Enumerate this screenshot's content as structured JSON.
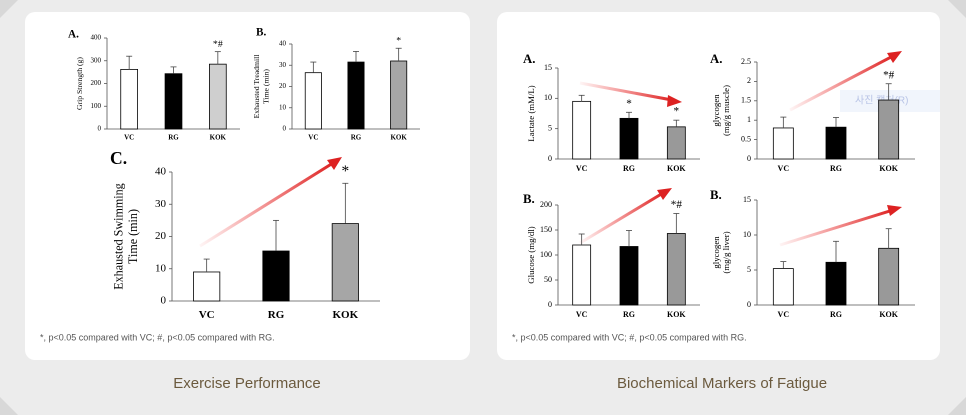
{
  "chart_data": [
    {
      "type": "bar",
      "label": "A.",
      "ylabel": [
        "Grip Strength (g)"
      ],
      "categories": [
        "VC",
        "RG",
        "KOK"
      ],
      "values": [
        262,
        243,
        285
      ],
      "errors": [
        58,
        30,
        55
      ],
      "colors": [
        "#ffffff",
        "#000000",
        "#cfcfcf"
      ],
      "annotations": [
        null,
        null,
        "*#"
      ],
      "ylim": [
        0,
        400
      ],
      "yticks": [
        0,
        100,
        200,
        300,
        400
      ]
    },
    {
      "type": "bar",
      "label": "B.",
      "ylabel": [
        "Exhausted Treadmill",
        "Time (min)"
      ],
      "categories": [
        "VC",
        "RG",
        "KOK"
      ],
      "values": [
        26.5,
        31.5,
        32
      ],
      "errors": [
        5,
        5,
        6
      ],
      "colors": [
        "#ffffff",
        "#000000",
        "#a6a6a6"
      ],
      "annotations": [
        null,
        null,
        "*"
      ],
      "ylim": [
        0,
        40
      ],
      "yticks": [
        0,
        10,
        20,
        30,
        40
      ]
    },
    {
      "type": "bar",
      "label": "C.",
      "ylabel": [
        "Exhausted Swimming",
        "Time (min)"
      ],
      "categories": [
        "VC",
        "RG",
        "KOK"
      ],
      "values": [
        9,
        15.5,
        24
      ],
      "errors": [
        4,
        9.5,
        12.5
      ],
      "colors": [
        "#ffffff",
        "#000000",
        "#a6a6a6"
      ],
      "annotations": [
        null,
        null,
        "*"
      ],
      "ylim": [
        0,
        40
      ],
      "yticks": [
        0,
        10,
        20,
        30,
        40
      ]
    },
    {
      "type": "bar",
      "label": "A.",
      "ylabel": [
        "Lactate (mM/L)"
      ],
      "categories": [
        "VC",
        "RG",
        "KOK"
      ],
      "values": [
        9.5,
        6.7,
        5.3
      ],
      "errors": [
        1,
        1,
        1.1
      ],
      "colors": [
        "#ffffff",
        "#000000",
        "#999999"
      ],
      "annotations": [
        null,
        "*",
        "*"
      ],
      "ylim": [
        0,
        15
      ],
      "yticks": [
        0,
        5,
        10,
        15
      ]
    },
    {
      "type": "bar",
      "label": "A.",
      "ylabel": [
        "glycogen",
        "(mg/g muscle)"
      ],
      "categories": [
        "VC",
        "RG",
        "KOK"
      ],
      "values": [
        0.8,
        0.82,
        1.52
      ],
      "errors": [
        0.28,
        0.25,
        0.42
      ],
      "colors": [
        "#ffffff",
        "#000000",
        "#999999"
      ],
      "annotations": [
        null,
        null,
        "*#"
      ],
      "ylim": [
        0,
        2.5
      ],
      "yticks": [
        0,
        0.5,
        1,
        1.5,
        2,
        2.5
      ]
    },
    {
      "type": "bar",
      "label": "B.",
      "ylabel": [
        "Glucose (mg/dl)"
      ],
      "categories": [
        "VC",
        "RG",
        "KOK"
      ],
      "values": [
        120,
        117,
        143
      ],
      "errors": [
        22,
        32,
        40
      ],
      "colors": [
        "#ffffff",
        "#000000",
        "#999999"
      ],
      "annotations": [
        null,
        null,
        "*#"
      ],
      "ylim": [
        0,
        200
      ],
      "yticks": [
        0,
        50,
        100,
        150,
        200
      ]
    },
    {
      "type": "bar",
      "label": "B.",
      "ylabel": [
        "glycogen",
        "(mg/g liver)"
      ],
      "categories": [
        "VC",
        "RG",
        "KOK"
      ],
      "values": [
        5.2,
        6.1,
        8.1
      ],
      "errors": [
        1,
        3,
        2.8
      ],
      "colors": [
        "#ffffff",
        "#000000",
        "#999999"
      ],
      "annotations": [
        null,
        null,
        null
      ],
      "ylim": [
        0,
        15
      ],
      "yticks": [
        0,
        5,
        10,
        15
      ]
    }
  ],
  "panels": [
    {
      "caption": "Exercise Performance",
      "footnote": "*, p<0.05 compared with VC; #, p<0.05 compared with RG."
    },
    {
      "caption": "Biochemical Markers of Fatigue",
      "footnote": "*, p<0.05 compared with VC; #, p<0.05 compared with RG."
    }
  ],
  "overlay_label": "사진 캡처(R)"
}
